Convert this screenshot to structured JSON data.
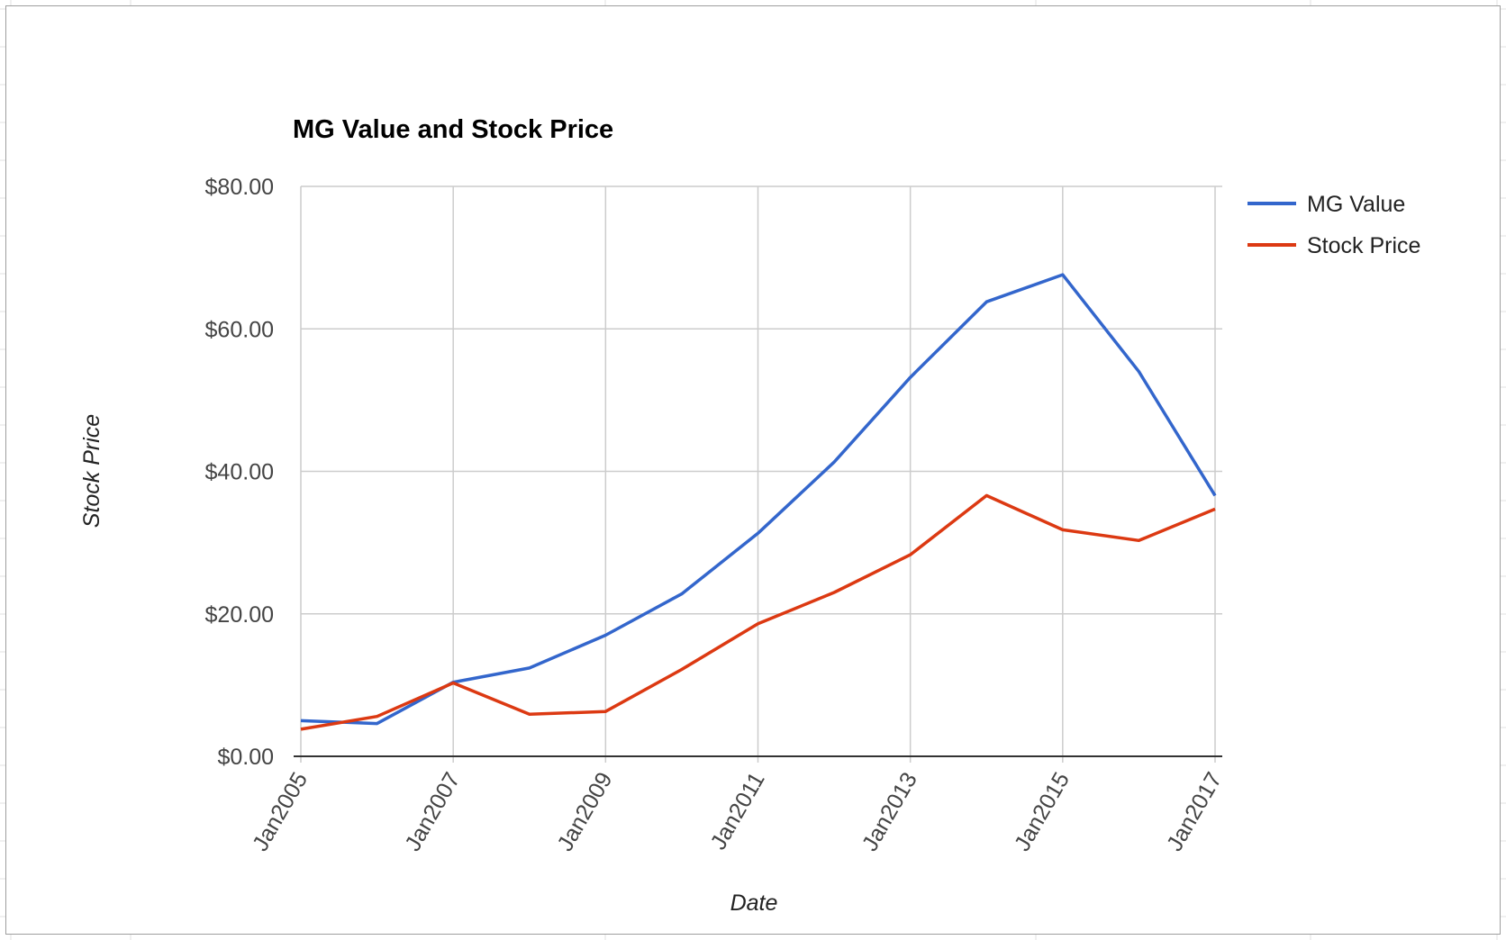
{
  "chart_data": {
    "type": "line",
    "title": "MG Value and Stock Price",
    "xlabel": "Date",
    "ylabel": "Stock Price",
    "x_ticks": [
      "Jan2005",
      "Jan2007",
      "Jan2009",
      "Jan2011",
      "Jan2013",
      "Jan2015",
      "Jan2017"
    ],
    "y_ticks": [
      "$0.00",
      "$20.00",
      "$40.00",
      "$60.00",
      "$80.00"
    ],
    "ylim": [
      0,
      80
    ],
    "xlim": [
      "2005-01",
      "2017-01"
    ],
    "grid": true,
    "legend_position": "right",
    "x": [
      "2005-01",
      "2006-01",
      "2007-01",
      "2008-01",
      "2009-01",
      "2010-01",
      "2011-01",
      "2012-01",
      "2013-01",
      "2014-01",
      "2015-01",
      "2016-01",
      "2017-01"
    ],
    "series": [
      {
        "name": "MG Value",
        "color": "#3366cc",
        "values": [
          5.0,
          4.6,
          10.4,
          12.4,
          17.0,
          22.8,
          31.3,
          41.3,
          53.2,
          63.8,
          67.6,
          54.0,
          36.6
        ]
      },
      {
        "name": "Stock Price",
        "color": "#dc3912",
        "values": [
          3.8,
          5.6,
          10.3,
          5.9,
          6.3,
          12.2,
          18.6,
          23.0,
          28.3,
          36.6,
          31.8,
          30.3,
          34.7
        ]
      }
    ]
  }
}
